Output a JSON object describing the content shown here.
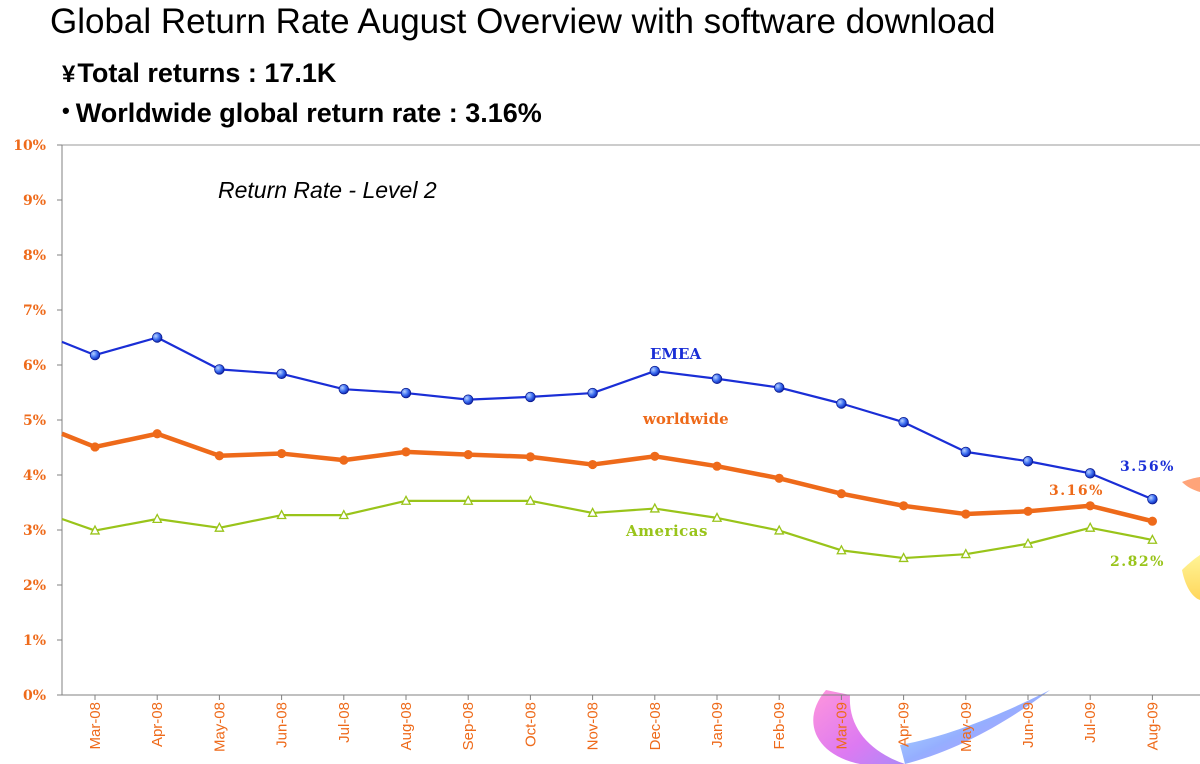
{
  "page": {
    "title": "Global Return Rate August Overview with software download",
    "bullets": [
      {
        "marker": "¥",
        "text": "Total returns :  17.1K"
      },
      {
        "marker": "•",
        "text": "Worldwide global return rate : 3.16%"
      }
    ]
  },
  "chart_data": {
    "type": "line",
    "subtitle": "Return Rate - Level 2",
    "categories": [
      "Mar-08",
      "Apr-08",
      "May-08",
      "Jun-08",
      "Jul-08",
      "Aug-08",
      "Sep-08",
      "Oct-08",
      "Nov-08",
      "Dec-08",
      "Jan-09",
      "Feb-09",
      "Mar-09",
      "Apr-09",
      "May-09",
      "Jun-09",
      "Jul-09",
      "Aug-09"
    ],
    "ylim": [
      0,
      10
    ],
    "yticks": [
      "0%",
      "1%",
      "2%",
      "3%",
      "4%",
      "5%",
      "6%",
      "7%",
      "8%",
      "9%",
      "10%"
    ],
    "grid": false,
    "series": [
      {
        "name": "EMEA",
        "color": "#1a2ed6",
        "marker": "circle",
        "start_value": 6.42,
        "values": [
          6.18,
          6.5,
          5.92,
          5.84,
          5.56,
          5.49,
          5.37,
          5.42,
          5.49,
          5.89,
          5.75,
          5.59,
          5.3,
          4.96,
          4.42,
          4.25,
          4.03,
          3.56
        ],
        "end_label": "3.56%"
      },
      {
        "name": "worldwide",
        "color": "#ee6a1a",
        "marker": "dot",
        "start_value": 4.75,
        "values": [
          4.51,
          4.75,
          4.35,
          4.39,
          4.27,
          4.42,
          4.37,
          4.33,
          4.19,
          4.34,
          4.16,
          3.94,
          3.66,
          3.44,
          3.29,
          3.34,
          3.44,
          3.16
        ],
        "end_label": "3.16%"
      },
      {
        "name": "Americas",
        "color": "#99c41a",
        "marker": "triangle",
        "start_value": 3.2,
        "values": [
          2.99,
          3.2,
          3.04,
          3.27,
          3.27,
          3.53,
          3.53,
          3.53,
          3.31,
          3.39,
          3.22,
          2.99,
          2.63,
          2.49,
          2.56,
          2.75,
          3.04,
          2.82
        ],
        "end_label": "2.82%"
      }
    ]
  },
  "colors": {
    "axis_text": "#ee6a1a",
    "emea": "#1a2ed6",
    "worldwide": "#ee6a1a",
    "americas": "#99c41a"
  }
}
